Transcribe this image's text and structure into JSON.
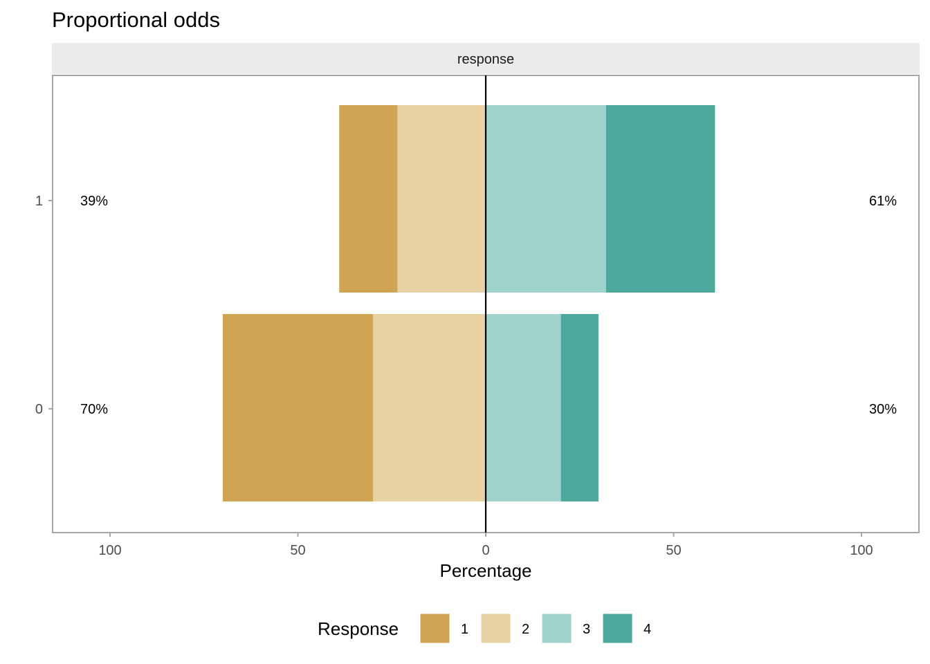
{
  "chart_data": {
    "type": "bar",
    "title": "Proportional odds",
    "facet_label": "response",
    "xlabel": "Percentage",
    "ylabel": "",
    "xlim": [
      -100,
      100
    ],
    "x_ticks": [
      -100,
      -50,
      0,
      50,
      100
    ],
    "x_tick_labels": [
      "100",
      "50",
      "0",
      "50",
      "100"
    ],
    "categories": [
      "1",
      "0"
    ],
    "series": [
      {
        "name": "1",
        "color": "#CFA553",
        "values": [
          15.5,
          40
        ]
      },
      {
        "name": "2",
        "color": "#E6D2A3",
        "values": [
          23.5,
          30
        ]
      },
      {
        "name": "3",
        "color": "#A0D3CC",
        "values": [
          32,
          20
        ]
      },
      {
        "name": "4",
        "color": "#4CA89D",
        "values": [
          29,
          10
        ]
      }
    ],
    "negative_series": [
      "1",
      "2"
    ],
    "left_labels": [
      "39%",
      "70%"
    ],
    "right_labels": [
      "61%",
      "30%"
    ],
    "legend": {
      "title": "Response",
      "position": "bottom",
      "items": [
        "1",
        "2",
        "3",
        "4"
      ]
    },
    "grid": false
  }
}
